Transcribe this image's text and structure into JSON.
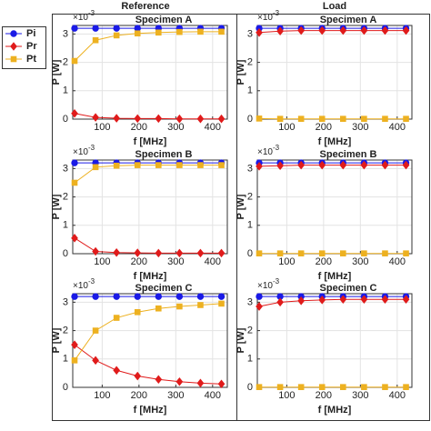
{
  "columns": [
    "Reference",
    "Load"
  ],
  "chart_data": [
    {
      "type": "line",
      "title": "Specimen A",
      "xlabel": "f [MHz]",
      "ylabel": "P [W]",
      "y_multiplier": {
        "base": "×10",
        "exponent": "-3"
      },
      "x": [
        25,
        82,
        139,
        196,
        253,
        310,
        367,
        424
      ],
      "xlim": [
        20,
        440
      ],
      "xticks": [
        100,
        200,
        300,
        400
      ],
      "ylim": [
        0,
        3.3
      ],
      "yticks": [
        0,
        1,
        2,
        3
      ],
      "grid": true,
      "series": [
        {
          "name": "Pi",
          "color": "#1a1ae6",
          "marker": "circle",
          "values": [
            3.2,
            3.2,
            3.2,
            3.2,
            3.2,
            3.2,
            3.2,
            3.2
          ]
        },
        {
          "name": "Pr",
          "color": "#e01b1b",
          "marker": "diamond",
          "values": [
            0.2,
            0.06,
            0.03,
            0.02,
            0.02,
            0.01,
            0.01,
            0.01
          ]
        },
        {
          "name": "Pt",
          "color": "#edb120",
          "marker": "square",
          "values": [
            2.05,
            2.78,
            2.95,
            3.02,
            3.05,
            3.07,
            3.08,
            3.08
          ]
        }
      ]
    },
    {
      "type": "line",
      "title": "Specimen A",
      "xlabel": "f [MHz]",
      "ylabel": "P [W]",
      "y_multiplier": {
        "base": "×10",
        "exponent": "-3"
      },
      "x": [
        25,
        82,
        139,
        196,
        253,
        310,
        367,
        424
      ],
      "xlim": [
        20,
        440
      ],
      "xticks": [
        100,
        200,
        300,
        400
      ],
      "ylim": [
        0,
        3.3
      ],
      "yticks": [
        0,
        1,
        2,
        3
      ],
      "grid": true,
      "series": [
        {
          "name": "Pi",
          "color": "#1a1ae6",
          "marker": "circle",
          "values": [
            3.2,
            3.2,
            3.2,
            3.2,
            3.2,
            3.2,
            3.2,
            3.2
          ]
        },
        {
          "name": "Pr",
          "color": "#e01b1b",
          "marker": "diamond",
          "values": [
            3.05,
            3.1,
            3.12,
            3.12,
            3.12,
            3.12,
            3.12,
            3.12
          ]
        },
        {
          "name": "Pt",
          "color": "#edb120",
          "marker": "square",
          "values": [
            0.02,
            0.01,
            0.01,
            0.01,
            0.01,
            0.01,
            0.01,
            0.01
          ]
        }
      ]
    },
    {
      "type": "line",
      "title": "Specimen B",
      "xlabel": "f [MHz]",
      "ylabel": "P [W]",
      "y_multiplier": {
        "base": "×10",
        "exponent": "-3"
      },
      "x": [
        25,
        82,
        139,
        196,
        253,
        310,
        367,
        424
      ],
      "xlim": [
        20,
        440
      ],
      "xticks": [
        100,
        200,
        300,
        400
      ],
      "ylim": [
        0,
        3.3
      ],
      "yticks": [
        0,
        1,
        2,
        3
      ],
      "grid": true,
      "series": [
        {
          "name": "Pi",
          "color": "#1a1ae6",
          "marker": "circle",
          "values": [
            3.2,
            3.2,
            3.2,
            3.2,
            3.2,
            3.2,
            3.2,
            3.2
          ]
        },
        {
          "name": "Pr",
          "color": "#e01b1b",
          "marker": "diamond",
          "values": [
            0.55,
            0.08,
            0.04,
            0.03,
            0.02,
            0.02,
            0.02,
            0.02
          ]
        },
        {
          "name": "Pt",
          "color": "#edb120",
          "marker": "square",
          "values": [
            2.5,
            3.05,
            3.1,
            3.12,
            3.12,
            3.12,
            3.12,
            3.12
          ]
        }
      ]
    },
    {
      "type": "line",
      "title": "Specimen B",
      "xlabel": "f [MHz]",
      "ylabel": "P [W]",
      "y_multiplier": {
        "base": "×10",
        "exponent": "-3"
      },
      "x": [
        25,
        82,
        139,
        196,
        253,
        310,
        367,
        424
      ],
      "xlim": [
        20,
        440
      ],
      "xticks": [
        100,
        200,
        300,
        400
      ],
      "ylim": [
        0,
        3.3
      ],
      "yticks": [
        0,
        1,
        2,
        3
      ],
      "grid": true,
      "series": [
        {
          "name": "Pi",
          "color": "#1a1ae6",
          "marker": "circle",
          "values": [
            3.2,
            3.2,
            3.2,
            3.2,
            3.2,
            3.2,
            3.2,
            3.2
          ]
        },
        {
          "name": "Pr",
          "color": "#e01b1b",
          "marker": "diamond",
          "values": [
            3.08,
            3.1,
            3.12,
            3.12,
            3.12,
            3.12,
            3.12,
            3.12
          ]
        },
        {
          "name": "Pt",
          "color": "#edb120",
          "marker": "square",
          "values": [
            0.01,
            0.01,
            0.01,
            0.01,
            0.01,
            0.01,
            0.01,
            0.01
          ]
        }
      ]
    },
    {
      "type": "line",
      "title": "Specimen C",
      "xlabel": "f [MHz]",
      "ylabel": "P [W]",
      "y_multiplier": {
        "base": "×10",
        "exponent": "-3"
      },
      "x": [
        25,
        82,
        139,
        196,
        253,
        310,
        367,
        424
      ],
      "xlim": [
        20,
        440
      ],
      "xticks": [
        100,
        200,
        300,
        400
      ],
      "ylim": [
        0,
        3.3
      ],
      "yticks": [
        0,
        1,
        2,
        3
      ],
      "grid": true,
      "series": [
        {
          "name": "Pi",
          "color": "#1a1ae6",
          "marker": "circle",
          "values": [
            3.2,
            3.2,
            3.2,
            3.2,
            3.2,
            3.2,
            3.2,
            3.2
          ]
        },
        {
          "name": "Pr",
          "color": "#e01b1b",
          "marker": "diamond",
          "values": [
            1.5,
            0.95,
            0.6,
            0.4,
            0.28,
            0.2,
            0.15,
            0.12
          ]
        },
        {
          "name": "Pt",
          "color": "#edb120",
          "marker": "square",
          "values": [
            0.95,
            2.0,
            2.45,
            2.65,
            2.78,
            2.85,
            2.9,
            2.95
          ]
        }
      ]
    },
    {
      "type": "line",
      "title": "Specimen C",
      "xlabel": "f [MHz]",
      "ylabel": "P [W]",
      "y_multiplier": {
        "base": "×10",
        "exponent": "-3"
      },
      "x": [
        25,
        82,
        139,
        196,
        253,
        310,
        367,
        424
      ],
      "xlim": [
        20,
        440
      ],
      "xticks": [
        100,
        200,
        300,
        400
      ],
      "ylim": [
        0,
        3.3
      ],
      "yticks": [
        0,
        1,
        2,
        3
      ],
      "grid": true,
      "series": [
        {
          "name": "Pi",
          "color": "#1a1ae6",
          "marker": "circle",
          "values": [
            3.2,
            3.2,
            3.2,
            3.2,
            3.2,
            3.2,
            3.2,
            3.2
          ]
        },
        {
          "name": "Pr",
          "color": "#e01b1b",
          "marker": "diamond",
          "values": [
            2.85,
            3.0,
            3.05,
            3.08,
            3.1,
            3.1,
            3.1,
            3.1
          ]
        },
        {
          "name": "Pt",
          "color": "#edb120",
          "marker": "square",
          "values": [
            0.01,
            0.01,
            0.01,
            0.01,
            0.01,
            0.01,
            0.01,
            0.01
          ]
        }
      ]
    }
  ]
}
